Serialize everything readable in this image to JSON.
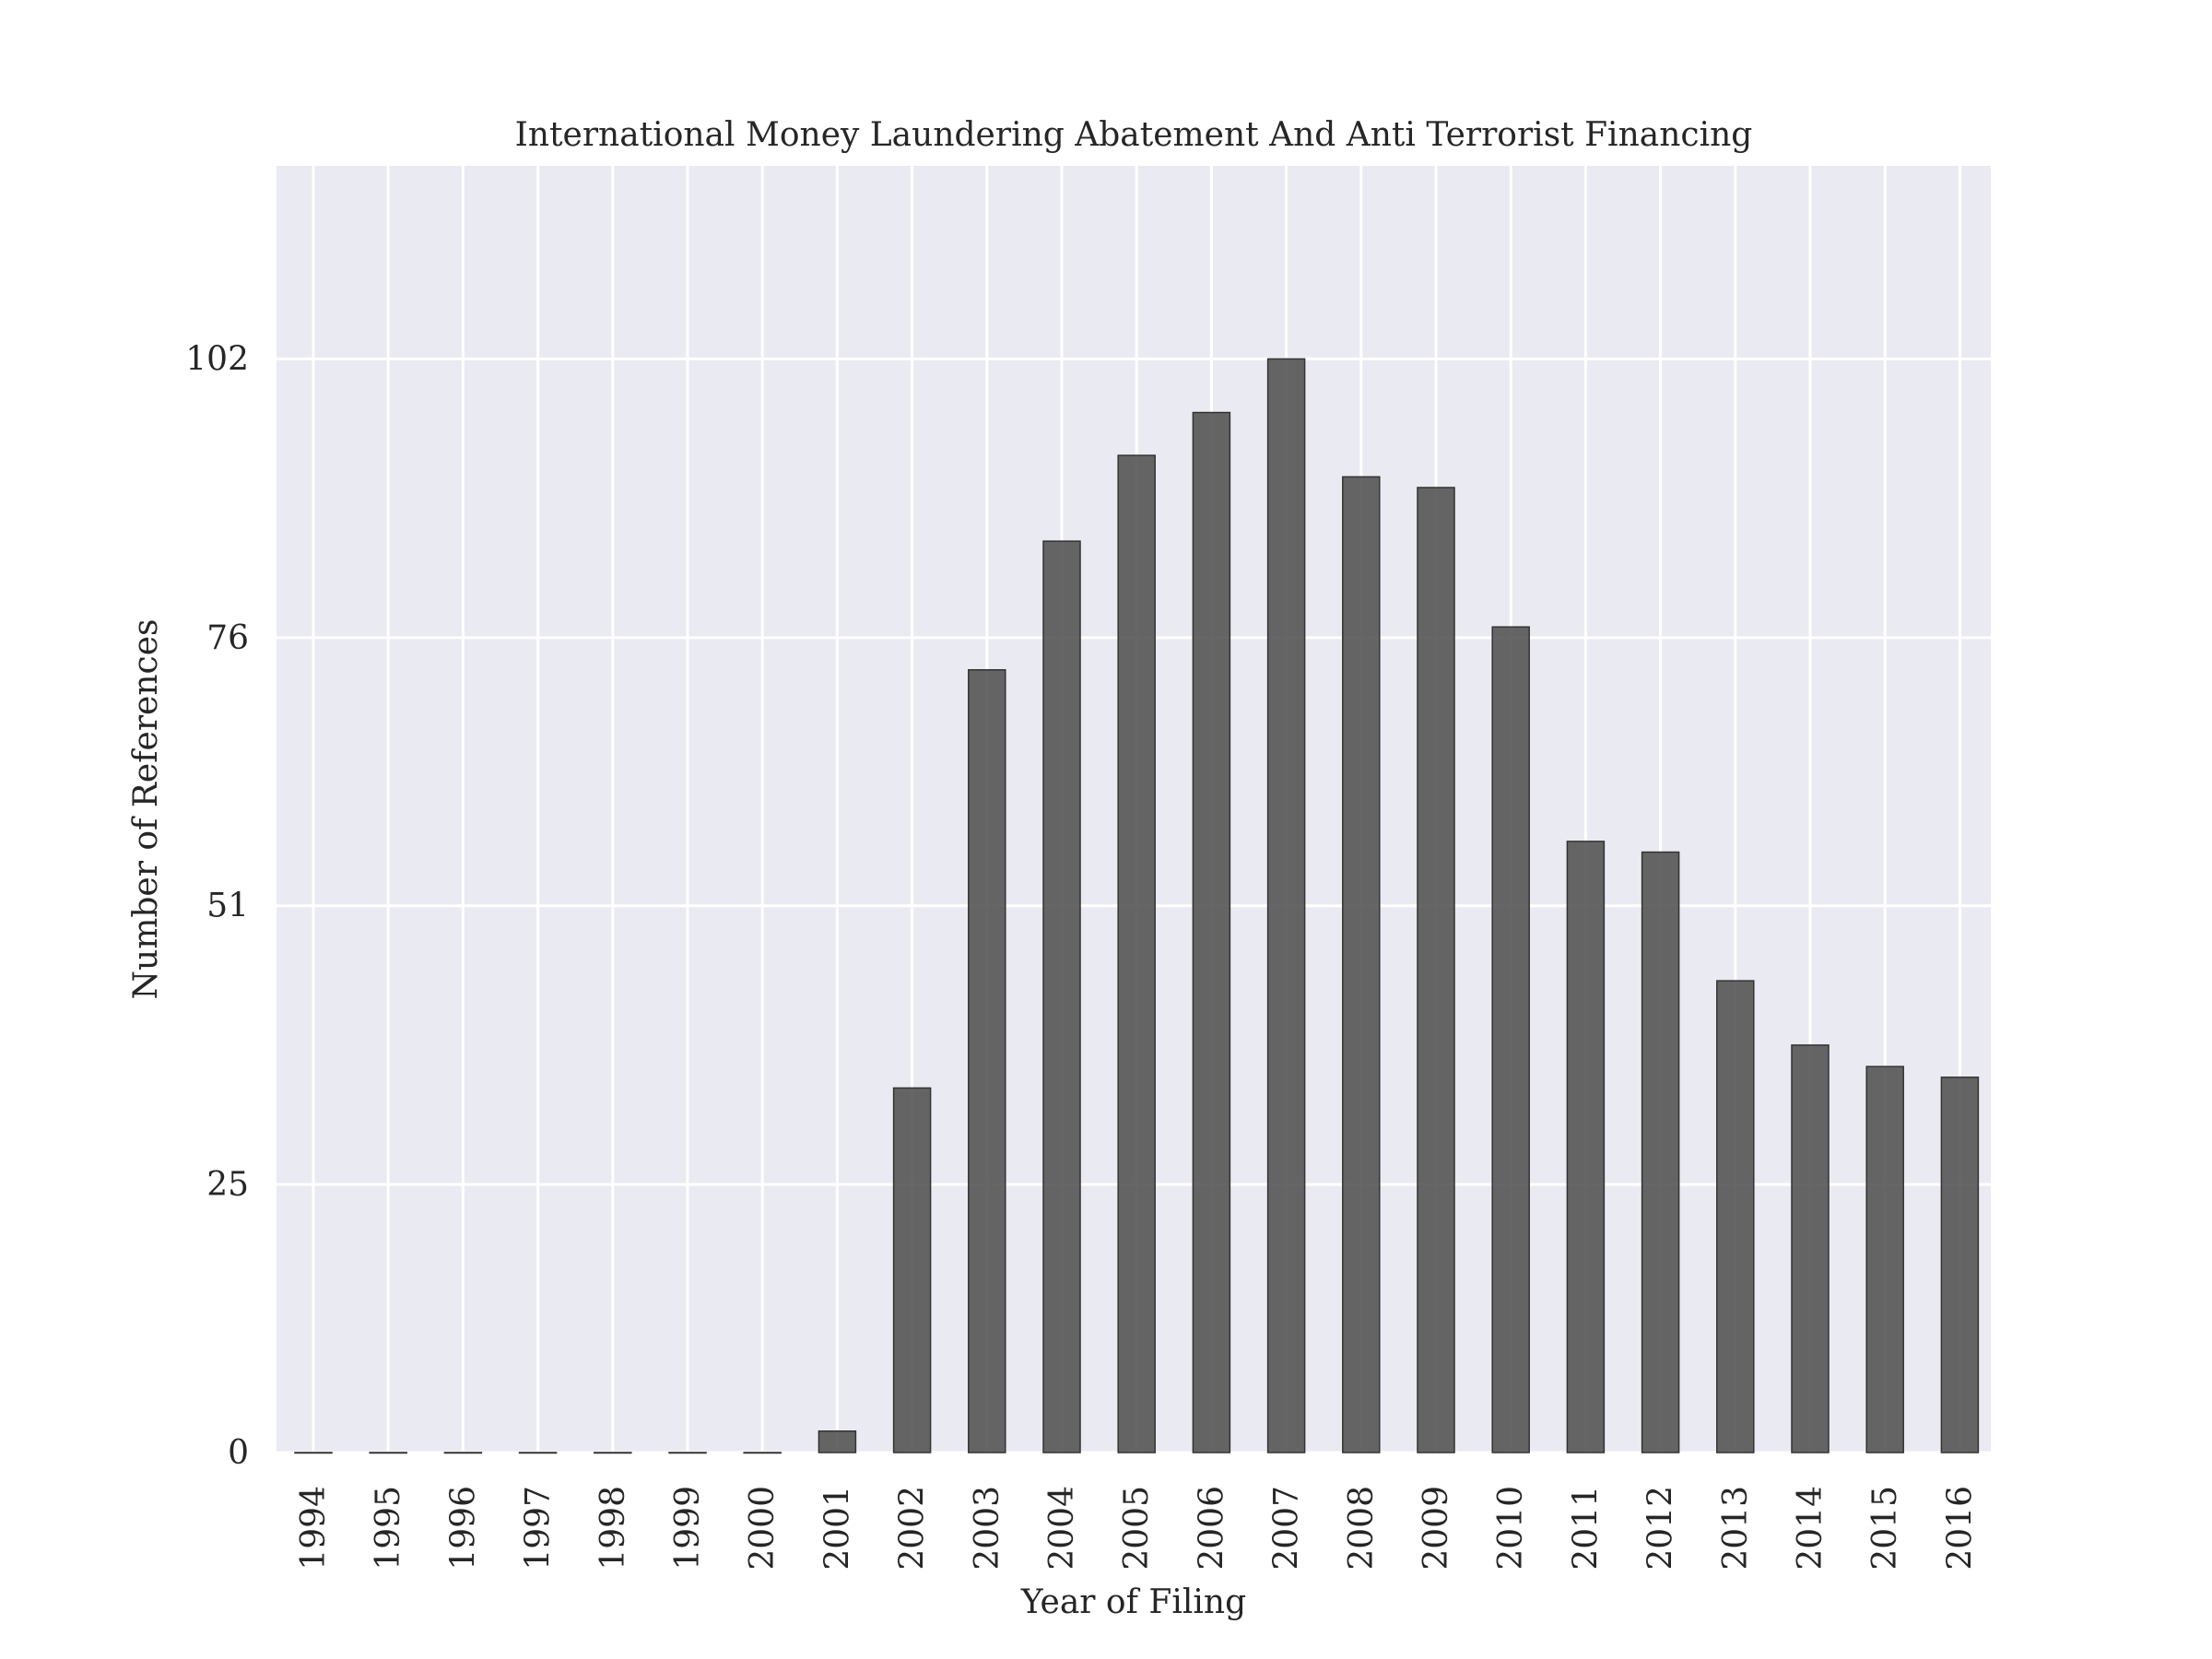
{
  "chart_data": {
    "type": "bar",
    "title": "International Money Laundering Abatement And Anti Terrorist Financing",
    "xlabel": "Year of Filing",
    "ylabel": "Number of References",
    "categories": [
      "1994",
      "1995",
      "1996",
      "1997",
      "1998",
      "1999",
      "2000",
      "2001",
      "2002",
      "2003",
      "2004",
      "2005",
      "2006",
      "2007",
      "2008",
      "2009",
      "2010",
      "2011",
      "2012",
      "2013",
      "2014",
      "2015",
      "2016"
    ],
    "values": [
      0,
      0,
      0,
      0,
      0,
      0,
      0,
      2,
      34,
      73,
      85,
      93,
      97,
      102,
      91,
      90,
      77,
      57,
      56,
      44,
      38,
      36,
      35
    ],
    "yticks": [
      0,
      25,
      51,
      76,
      102
    ],
    "ylim": [
      0,
      120
    ],
    "grid": true,
    "legend": "none",
    "colors": {
      "bar": "#555555",
      "background": "#eaeaf2",
      "grid": "#ffffff"
    }
  }
}
